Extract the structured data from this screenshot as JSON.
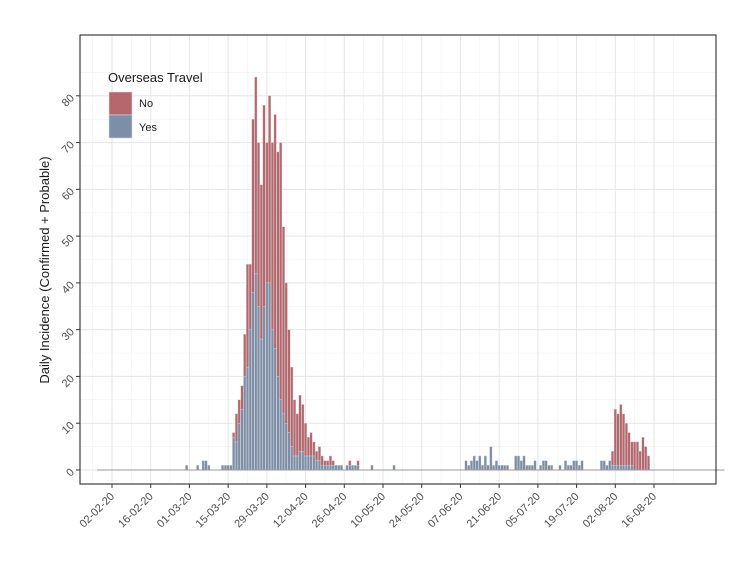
{
  "chart_data": {
    "type": "bar",
    "stacked": true,
    "title": "",
    "xlabel": "",
    "ylabel": "Daily Incidence (Confirmed + Probable)",
    "x_start_date": "2020-01-28",
    "y_ticks": [
      0,
      10,
      20,
      30,
      40,
      50,
      60,
      70,
      80
    ],
    "ylim": [
      -3,
      93
    ],
    "x_ticks": [
      "02-02-20",
      "16-02-20",
      "01-03-20",
      "15-03-20",
      "29-03-20",
      "12-04-20",
      "26-04-20",
      "10-05-20",
      "24-05-20",
      "07-06-20",
      "21-06-20",
      "05-07-20",
      "19-07-20",
      "02-08-20",
      "16-08-20"
    ],
    "grid": true,
    "legend": {
      "title": "Overseas Travel",
      "position": "top-left",
      "entries": [
        {
          "label": "No",
          "color": "#b5676d"
        },
        {
          "label": "Yes",
          "color": "#7d8ea8"
        }
      ]
    },
    "colors": {
      "no": "#b5676d",
      "yes": "#7d8ea8",
      "bar_outline": "#d9d9d9",
      "baseline": "#999999"
    },
    "series": [
      {
        "name": "Yes",
        "values": [
          0,
          0,
          0,
          0,
          0,
          0,
          0,
          0,
          0,
          0,
          0,
          0,
          0,
          0,
          0,
          0,
          0,
          0,
          0,
          0,
          0,
          0,
          0,
          0,
          0,
          0,
          0,
          0,
          0,
          0,
          0,
          0,
          1,
          0,
          0,
          0,
          1,
          0,
          2,
          2,
          1,
          0,
          0,
          0,
          0,
          1,
          1,
          1,
          1,
          7,
          6,
          10,
          13,
          20,
          22,
          30,
          38,
          42,
          35,
          28,
          35,
          40,
          40,
          30,
          26,
          20,
          15,
          12,
          10,
          8,
          5,
          3,
          3,
          4,
          4,
          3,
          3,
          3,
          3,
          2,
          2,
          1,
          1,
          1,
          1,
          1,
          1,
          1,
          1,
          0,
          1,
          1,
          1,
          1,
          1,
          0,
          0,
          0,
          0,
          1,
          0,
          0,
          0,
          0,
          0,
          0,
          0,
          1,
          0,
          0,
          0,
          0,
          0,
          0,
          0,
          0,
          0,
          0,
          0,
          0,
          0,
          0,
          0,
          0,
          0,
          0,
          0,
          0,
          0,
          0,
          0,
          0,
          0,
          2,
          1,
          2,
          3,
          2,
          3,
          1,
          3,
          1,
          5,
          1,
          2,
          1,
          1,
          1,
          1,
          0,
          0,
          3,
          3,
          2,
          3,
          1,
          1,
          1,
          2,
          0,
          1,
          2,
          2,
          1,
          1,
          0,
          0,
          1,
          0,
          2,
          1,
          1,
          2,
          2,
          1,
          2,
          0,
          0,
          0,
          0,
          0,
          0,
          2,
          2,
          1,
          2,
          1,
          1,
          1,
          1,
          1,
          1,
          1,
          1,
          0,
          0,
          0,
          0,
          0,
          0,
          0,
          0,
          0,
          0,
          0,
          0,
          0,
          0,
          0,
          0,
          0,
          0,
          0,
          0,
          0,
          0,
          0,
          0,
          0,
          0,
          0,
          0,
          0,
          0,
          0,
          0,
          0
        ]
      },
      {
        "name": "No",
        "values": [
          0,
          0,
          0,
          0,
          0,
          0,
          0,
          0,
          0,
          0,
          0,
          0,
          0,
          0,
          0,
          0,
          0,
          0,
          0,
          0,
          0,
          0,
          0,
          0,
          0,
          0,
          0,
          0,
          0,
          0,
          0,
          0,
          0,
          0,
          0,
          0,
          0,
          0,
          0,
          0,
          0,
          0,
          0,
          0,
          0,
          0,
          0,
          0,
          0,
          1,
          6,
          5,
          5,
          9,
          22,
          14,
          37,
          42,
          35,
          33,
          43,
          30,
          40,
          40,
          50,
          48,
          55,
          40,
          30,
          22,
          17,
          12,
          9,
          12,
          10,
          7,
          4,
          5,
          3,
          2,
          3,
          2,
          1,
          1,
          2,
          1,
          0,
          0,
          0,
          0,
          0,
          1,
          0,
          0,
          1,
          0,
          0,
          0,
          0,
          0,
          0,
          0,
          0,
          0,
          0,
          0,
          0,
          0,
          0,
          0,
          0,
          0,
          0,
          0,
          0,
          0,
          0,
          0,
          0,
          0,
          0,
          0,
          0,
          0,
          0,
          0,
          0,
          0,
          0,
          0,
          0,
          0,
          0,
          0,
          0,
          0,
          0,
          0,
          0,
          0,
          0,
          0,
          0,
          0,
          0,
          0,
          0,
          0,
          0,
          0,
          0,
          0,
          0,
          0,
          0,
          0,
          0,
          0,
          0,
          0,
          0,
          0,
          0,
          0,
          0,
          0,
          0,
          0,
          0,
          0,
          0,
          0,
          0,
          0,
          0,
          0,
          0,
          0,
          0,
          0,
          0,
          0,
          0,
          0,
          0,
          0,
          3,
          12,
          11,
          13,
          11,
          9,
          7,
          5,
          6,
          6,
          4,
          7,
          5,
          3,
          0,
          0,
          0,
          0,
          0,
          0,
          0,
          0,
          0,
          0,
          0,
          0,
          0,
          0,
          0,
          0,
          0,
          0,
          0,
          0,
          0,
          0,
          0,
          0,
          0,
          0,
          0,
          0,
          0,
          0,
          0,
          0,
          0,
          0
        ]
      }
    ]
  }
}
